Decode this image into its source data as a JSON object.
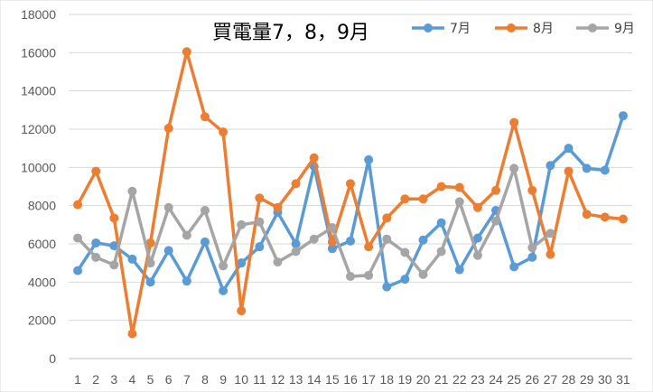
{
  "chart_data": {
    "type": "line",
    "title": "買電量7，8，9月",
    "xlabel": "",
    "ylabel": "",
    "ylim": [
      0,
      18000
    ],
    "yticks": [
      0,
      2000,
      4000,
      6000,
      8000,
      10000,
      12000,
      14000,
      16000,
      18000
    ],
    "grid": true,
    "legend_position": "top-right",
    "categories": [
      "1",
      "2",
      "3",
      "4",
      "5",
      "6",
      "7",
      "8",
      "9",
      "10",
      "11",
      "12",
      "13",
      "14",
      "15",
      "16",
      "17",
      "18",
      "19",
      "20",
      "21",
      "22",
      "23",
      "24",
      "25",
      "26",
      "27",
      "28",
      "29",
      "30",
      "31"
    ],
    "series": [
      {
        "name": "7月",
        "color": "#5B9BD5",
        "values": [
          4600,
          6050,
          5900,
          5200,
          4000,
          5650,
          4050,
          6100,
          3550,
          5000,
          5850,
          7650,
          6000,
          10050,
          5750,
          6150,
          10400,
          3750,
          4150,
          6200,
          7100,
          4650,
          6300,
          7750,
          4800,
          5300,
          10100,
          11000,
          9950,
          9850,
          12700
        ]
      },
      {
        "name": "8月",
        "color": "#ED7D31",
        "values": [
          8050,
          9800,
          7350,
          1300,
          6050,
          12050,
          16050,
          12650,
          11850,
          2500,
          8400,
          7900,
          9150,
          10500,
          6100,
          9150,
          5850,
          7350,
          8350,
          8350,
          9000,
          8950,
          7900,
          8800,
          12350,
          8800,
          5450,
          9800,
          7550,
          7400,
          7300
        ]
      },
      {
        "name": "9月",
        "color": "#A5A5A5",
        "values": [
          6300,
          5300,
          4900,
          8750,
          5000,
          7900,
          6450,
          7750,
          4850,
          7000,
          7150,
          5050,
          5600,
          6250,
          6850,
          4300,
          4350,
          6250,
          5550,
          4400,
          5600,
          8200,
          5400,
          7200,
          9950,
          5800,
          6550,
          null,
          null,
          null,
          null
        ]
      }
    ]
  }
}
